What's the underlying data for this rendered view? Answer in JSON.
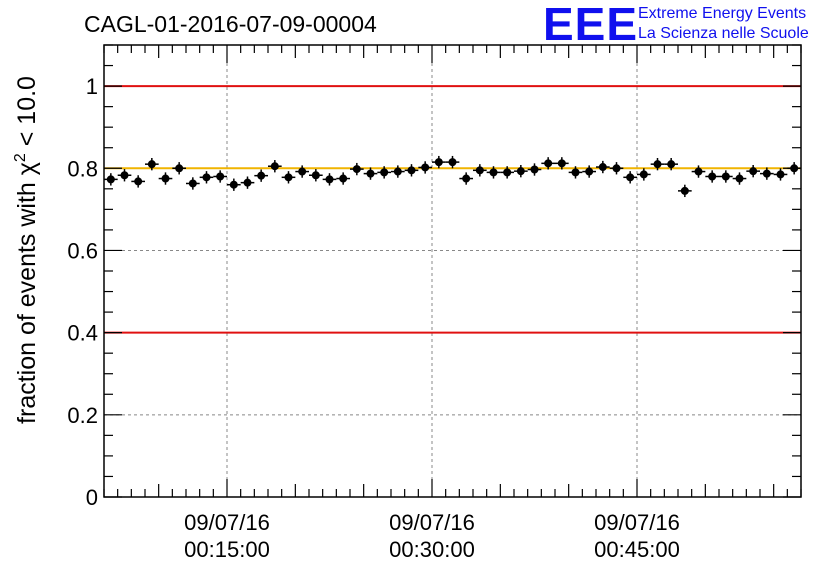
{
  "header": {
    "title": "CAGL-01-2016-07-09-00004",
    "logo_mark": "EEE",
    "logo_line1": "Extreme Energy Events",
    "logo_line2": "La Scienza nelle Scuole"
  },
  "colors": {
    "reference_line": "#e01010",
    "target_line": "#f0b400",
    "points": "#000000",
    "grid": "#888888",
    "logo": "#1010ee"
  },
  "chart_data": {
    "type": "scatter",
    "title": "CAGL-01-2016-07-09-00004",
    "ylabel_prefix": "fraction of events with χ",
    "ylabel_sup": "2",
    "ylabel_suffix": " < 10.0",
    "xlabel": "",
    "ylim": [
      0,
      1.1
    ],
    "xlim_minutes": [
      0,
      51
    ],
    "grid": true,
    "yticks": [
      "0",
      "0.2",
      "0.4",
      "0.6",
      "0.8",
      "1"
    ],
    "xticks": [
      {
        "x": 9,
        "date": "09/07/16",
        "time": "00:15:00"
      },
      {
        "x": 24,
        "date": "09/07/16",
        "time": "00:30:00"
      },
      {
        "x": 39,
        "date": "09/07/16",
        "time": "00:45:00"
      }
    ],
    "hlines": [
      {
        "y": 1.0,
        "color": "red"
      },
      {
        "y": 0.4,
        "color": "red"
      },
      {
        "y": 0.8,
        "color": "orange"
      }
    ],
    "series": [
      {
        "x": [
          0.5,
          1.5,
          2.5,
          3.5,
          4.5,
          5.5,
          6.5,
          7.5,
          8.5,
          9.5,
          10.5,
          11.5,
          12.5,
          13.5,
          14.5,
          15.5,
          16.5,
          17.5,
          18.5,
          19.5,
          20.5,
          21.5,
          22.5,
          23.5,
          24.5,
          25.5,
          26.5,
          27.5,
          28.5,
          29.5,
          30.5,
          31.5,
          32.5,
          33.5,
          34.5,
          35.5,
          36.5,
          37.5,
          38.5,
          39.5,
          40.5,
          41.5,
          42.5,
          43.5,
          44.5,
          45.5,
          46.5,
          47.5,
          48.5,
          49.5,
          50.5
        ],
        "y": [
          0.773,
          0.783,
          0.768,
          0.81,
          0.775,
          0.8,
          0.763,
          0.778,
          0.78,
          0.76,
          0.765,
          0.782,
          0.805,
          0.778,
          0.792,
          0.783,
          0.773,
          0.775,
          0.798,
          0.787,
          0.79,
          0.792,
          0.795,
          0.802,
          0.815,
          0.815,
          0.775,
          0.795,
          0.79,
          0.79,
          0.793,
          0.797,
          0.812,
          0.812,
          0.79,
          0.792,
          0.803,
          0.8,
          0.778,
          0.785,
          0.81,
          0.81,
          0.745,
          0.792,
          0.78,
          0.78,
          0.775,
          0.793,
          0.787,
          0.785,
          0.8
        ],
        "y_err": [
          0.015,
          0.015,
          0.015,
          0.015,
          0.015,
          0.015,
          0.015,
          0.015,
          0.015,
          0.015,
          0.015,
          0.015,
          0.015,
          0.015,
          0.015,
          0.015,
          0.015,
          0.015,
          0.015,
          0.015,
          0.015,
          0.015,
          0.015,
          0.015,
          0.015,
          0.015,
          0.015,
          0.015,
          0.015,
          0.015,
          0.015,
          0.015,
          0.015,
          0.015,
          0.015,
          0.015,
          0.015,
          0.015,
          0.015,
          0.015,
          0.015,
          0.015,
          0.015,
          0.015,
          0.015,
          0.015,
          0.015,
          0.015,
          0.015,
          0.015,
          0.015
        ]
      }
    ]
  }
}
